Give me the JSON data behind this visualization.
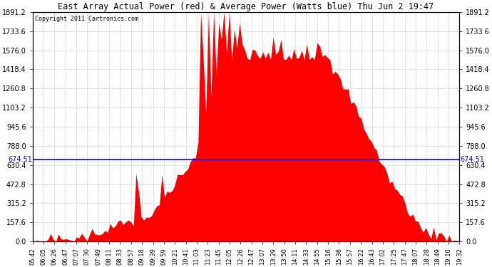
{
  "title": "East Array Actual Power (red) & Average Power (Watts blue) Thu Jun 2 19:47",
  "copyright": "Copyright 2011 Cartronics.com",
  "avg_power": 674.51,
  "y_max": 1891.2,
  "y_min": 0.0,
  "y_ticks": [
    0.0,
    157.6,
    315.2,
    472.8,
    630.4,
    788.0,
    945.6,
    1103.2,
    1260.8,
    1418.4,
    1576.0,
    1733.6,
    1891.2
  ],
  "y_tick_labels": [
    "0.0",
    "157.6",
    "315.2",
    "472.8",
    "630.4",
    "788.0",
    "945.6",
    "1103.2",
    "1260.8",
    "1418.4",
    "1576.0",
    "1733.6",
    "1891.2"
  ],
  "background_color": "#ffffff",
  "fill_color": "#ff0000",
  "line_color": "#0000ff",
  "grid_color": "#bbbbbb",
  "x_labels": [
    "05:42",
    "06:05",
    "06:26",
    "06:47",
    "07:07",
    "07:30",
    "07:49",
    "08:11",
    "08:33",
    "08:57",
    "09:18",
    "09:39",
    "09:59",
    "10:21",
    "10:41",
    "11:03",
    "11:23",
    "11:45",
    "12:05",
    "12:26",
    "12:47",
    "13:07",
    "13:29",
    "13:50",
    "14:11",
    "14:33",
    "14:55",
    "15:16",
    "15:36",
    "15:57",
    "16:22",
    "16:43",
    "17:02",
    "17:25",
    "17:47",
    "18:07",
    "18:28",
    "18:49",
    "19:10",
    "19:32"
  ],
  "figsize": [
    6.9,
    3.75
  ],
  "dpi": 100
}
